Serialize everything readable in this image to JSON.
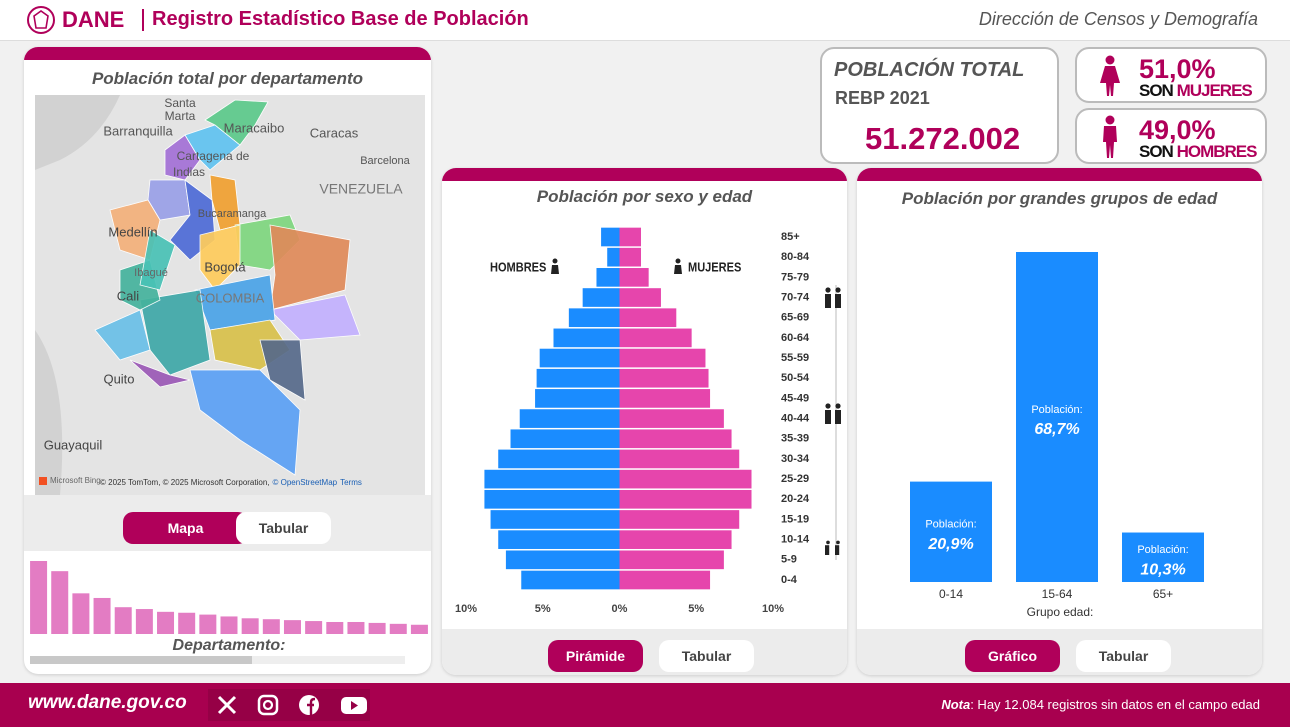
{
  "header": {
    "logo": "DANE",
    "title": "Registro Estadístico Base de Población",
    "subtitle": "Dirección de Censos y Demografía"
  },
  "total": {
    "label": "POBLACIÓN TOTAL",
    "period": "REBP 2021",
    "value": "51.272.002"
  },
  "women": {
    "share": "51,0%",
    "prefix": "SON",
    "label": "MUJERES"
  },
  "men": {
    "share": "49,0%",
    "prefix": "SON",
    "label": "HOMBRES"
  },
  "map": {
    "title": "Población total por departamento",
    "places": [
      "Santa",
      "Marta",
      "Barranquilla",
      "Maracaibo",
      "Caracas",
      "Cartagena de",
      "Indias",
      "Barcelona",
      "VENEZUELA",
      "Bucaramanga",
      "Medellín",
      "Bogotá",
      "Ibagué",
      "Cali",
      "COLOMBIA",
      "Quito",
      "Guayaquil"
    ],
    "provider": "Microsoft Bing",
    "attribution": "© 2025 TomTom, © 2025 Microsoft Corporation,",
    "osm": "© OpenStreetMap",
    "terms": "Terms",
    "buttons": [
      "Mapa",
      "Tabular"
    ]
  },
  "pyramid_buttons": [
    "Pirámide",
    "Tabular"
  ],
  "groups_buttons": [
    "Gráfico",
    "Tabular"
  ],
  "chart_data": [
    {
      "type": "pyramid",
      "title": "Población por sexo y edad",
      "categories": [
        "0-4",
        "5-9",
        "10-14",
        "15-19",
        "20-24",
        "25-29",
        "30-34",
        "35-39",
        "40-44",
        "45-49",
        "50-54",
        "55-59",
        "60-64",
        "65-69",
        "70-74",
        "75-79",
        "80-84",
        "85+"
      ],
      "series": [
        {
          "name": "HOMBRES",
          "color": "#1a8cff",
          "values": [
            6.4,
            7.4,
            7.9,
            8.4,
            8.8,
            8.8,
            7.9,
            7.1,
            6.5,
            5.5,
            5.4,
            5.2,
            4.3,
            3.3,
            2.4,
            1.5,
            0.8,
            1.2
          ]
        },
        {
          "name": "MUJERES",
          "color": "#e645ac",
          "values": [
            5.9,
            6.8,
            7.3,
            7.8,
            8.6,
            8.6,
            7.8,
            7.3,
            6.8,
            5.9,
            5.8,
            5.6,
            4.7,
            3.7,
            2.7,
            1.9,
            1.4,
            1.4
          ]
        }
      ],
      "xlim": [
        -10,
        10
      ],
      "xticks": [
        {
          "value": -10,
          "label": "10%"
        },
        {
          "value": -5,
          "label": "5%"
        },
        {
          "value": 0,
          "label": "0%"
        },
        {
          "value": 5,
          "label": "5%"
        },
        {
          "value": 10,
          "label": "10%"
        }
      ]
    },
    {
      "type": "bar",
      "title": "Población por grandes grupos de edad",
      "x_label": "Grupo edad:",
      "categories": [
        "0-14",
        "15-64",
        "65+"
      ],
      "values": [
        20.9,
        68.7,
        10.3
      ],
      "value_labels": [
        "20,9%",
        "68,7%",
        "10,3%"
      ],
      "data_label_prefix": "Población:",
      "color": "#1a8cff"
    },
    {
      "type": "bar",
      "x_label": "Departamento:",
      "categories": [
        null,
        null,
        null,
        null,
        null,
        null,
        null,
        null,
        null,
        null,
        null,
        null,
        null,
        null,
        null,
        null,
        null,
        null,
        null
      ],
      "values": [
        7.9,
        6.8,
        4.4,
        3.9,
        2.9,
        2.7,
        2.4,
        2.3,
        2.1,
        1.9,
        1.7,
        1.6,
        1.5,
        1.4,
        1.3,
        1.3,
        1.2,
        1.1,
        1.0
      ],
      "color": "#e37cc3"
    }
  ],
  "footer": {
    "url": "www.dane.gov.co",
    "note_label": "Nota",
    "note": ": Hay 12.084 registros sin datos en el campo edad"
  }
}
